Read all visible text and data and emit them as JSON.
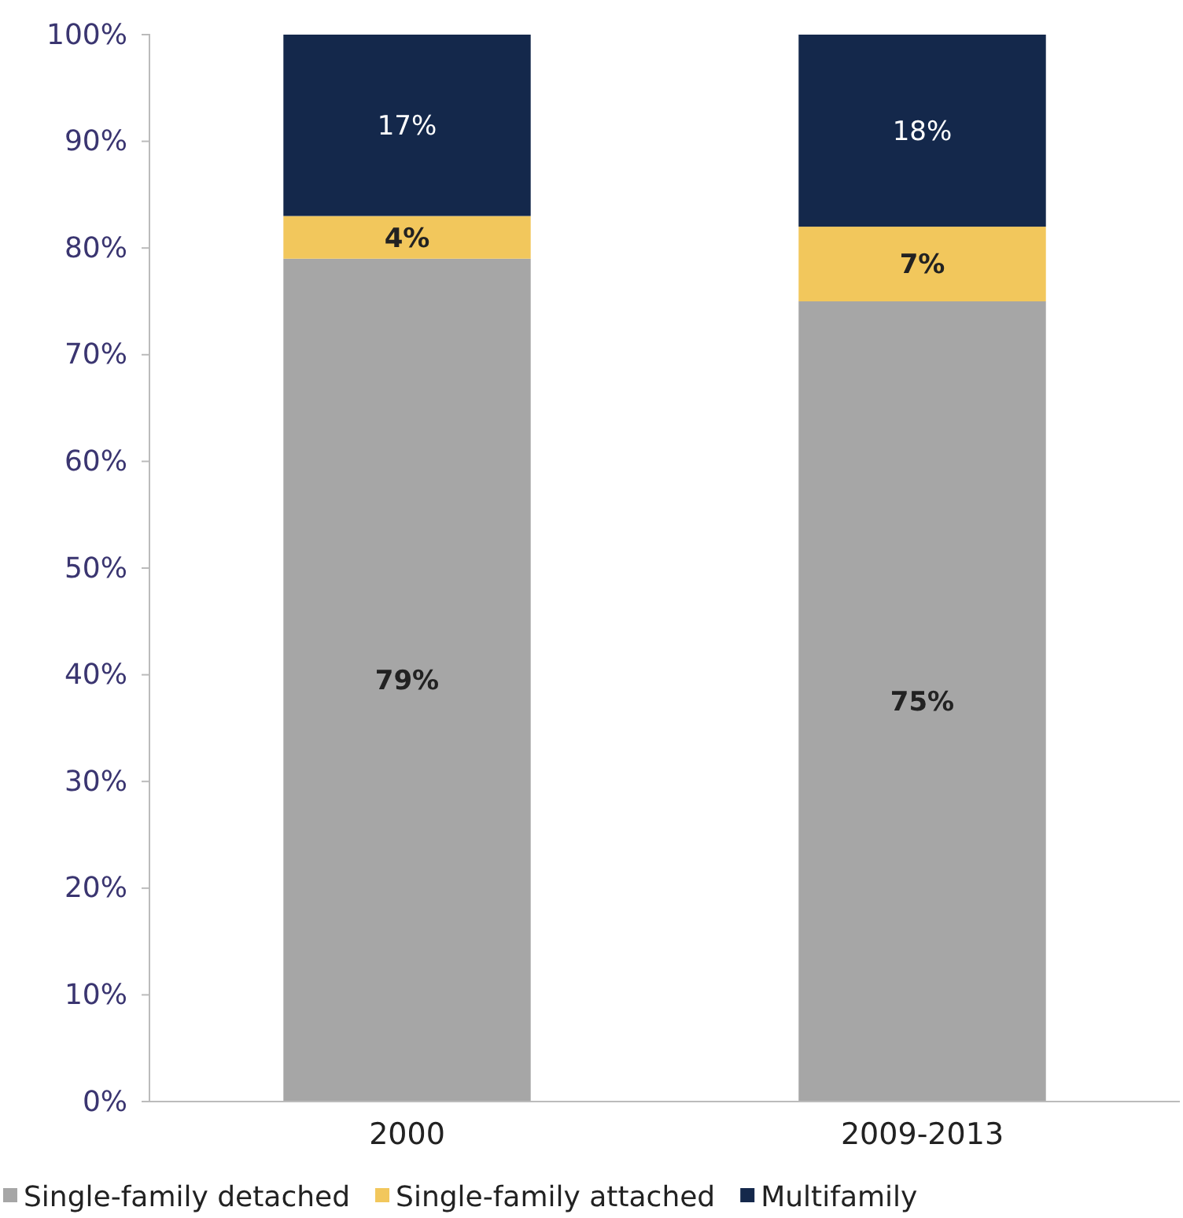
{
  "chart_data": {
    "type": "bar",
    "stacked": true,
    "categories": [
      "2000",
      "2009-2013"
    ],
    "series": [
      {
        "name": "Single-family detached",
        "color": "#a6a6a6",
        "values": [
          79,
          75
        ],
        "value_labels": [
          "79%",
          "75%"
        ]
      },
      {
        "name": "Single-family attached",
        "color": "#f2c75c",
        "values": [
          4,
          7
        ],
        "value_labels": [
          "4%",
          "7%"
        ]
      },
      {
        "name": "Multifamily",
        "color": "#14284b",
        "values": [
          17,
          18
        ],
        "value_labels": [
          "17%",
          "18%"
        ]
      }
    ],
    "ylim": [
      0,
      100
    ],
    "yticks": [
      {
        "value": 0,
        "label": "0%"
      },
      {
        "value": 10,
        "label": "10%"
      },
      {
        "value": 20,
        "label": "20%"
      },
      {
        "value": 30,
        "label": "30%"
      },
      {
        "value": 40,
        "label": "40%"
      },
      {
        "value": 50,
        "label": "50%"
      },
      {
        "value": 60,
        "label": "60%"
      },
      {
        "value": 70,
        "label": "70%"
      },
      {
        "value": 80,
        "label": "80%"
      },
      {
        "value": 90,
        "label": "90%"
      },
      {
        "value": 100,
        "label": "100%"
      }
    ],
    "legend": "bottom"
  }
}
